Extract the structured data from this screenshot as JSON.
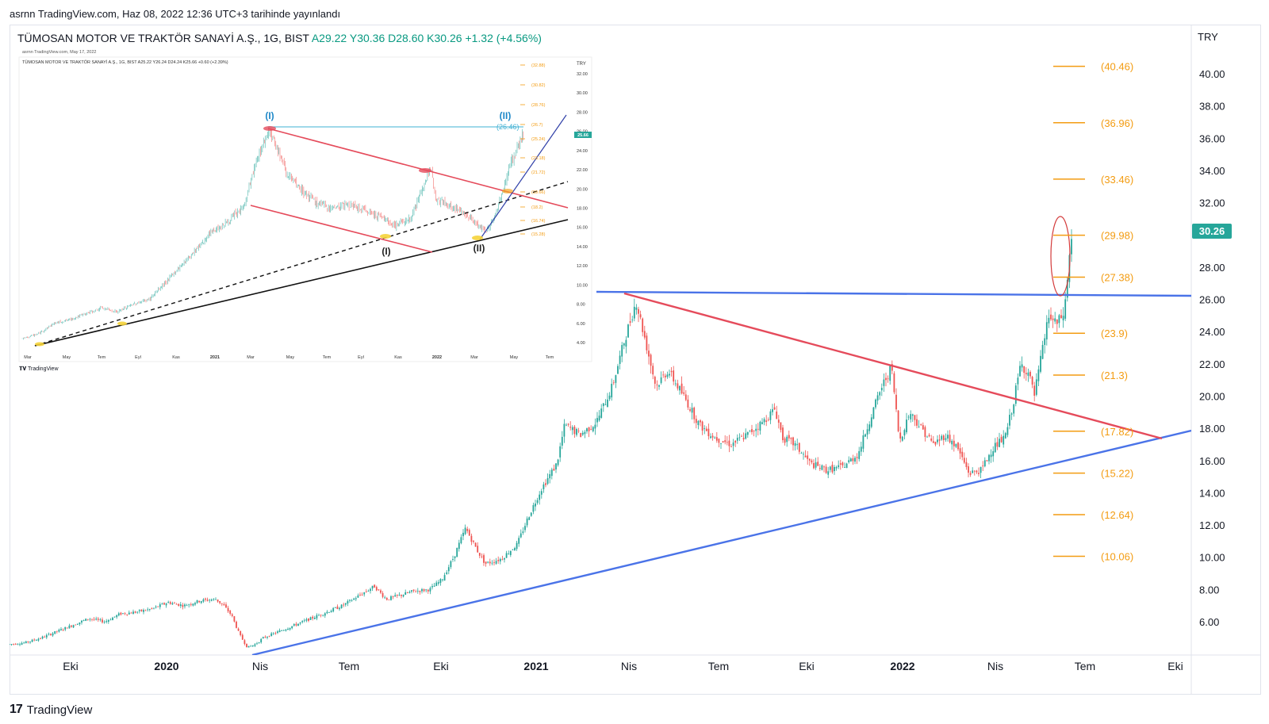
{
  "publish_line": "asrnn TradingView.com, Haz 08, 2022 12:36 UTC+3 tarihinde yayınlandı",
  "symbol": {
    "name": "TÜMOSAN MOTOR VE TRAKTÖR SANAYİ A.Ş., 1G, BIST",
    "open": "A29.22",
    "high": "Y30.36",
    "low": "D28.60",
    "close": "K30.26",
    "change": "+1.32 (+4.56%)"
  },
  "currency": "TRY",
  "footer": "TradingView",
  "colors": {
    "up": "#26a69a",
    "down": "#ef5350",
    "blue_line": "#4a73e8",
    "red_line": "#e54b5b",
    "fib": "#f39c12",
    "price_tag": "#26a69a"
  },
  "chart_data": {
    "type": "candlestick",
    "y_axis": {
      "range": [
        4,
        42
      ],
      "ticks": [
        "40.00",
        "38.00",
        "36.00",
        "34.00",
        "32.00",
        "30.00",
        "28.00",
        "26.00",
        "24.00",
        "22.00",
        "20.00",
        "18.00",
        "16.00",
        "14.00",
        "12.00",
        "10.00",
        "8.00",
        "6.00"
      ]
    },
    "x_axis": {
      "labels": [
        {
          "text": "Eki",
          "bold": false
        },
        {
          "text": "2020",
          "bold": true
        },
        {
          "text": "Nis",
          "bold": false
        },
        {
          "text": "Tem",
          "bold": false
        },
        {
          "text": "Eki",
          "bold": false
        },
        {
          "text": "2021",
          "bold": true
        },
        {
          "text": "Nis",
          "bold": false
        },
        {
          "text": "Tem",
          "bold": false
        },
        {
          "text": "Eki",
          "bold": false
        },
        {
          "text": "2022",
          "bold": true
        },
        {
          "text": "Nis",
          "bold": false
        },
        {
          "text": "Tem",
          "bold": false
        },
        {
          "text": "Eki",
          "bold": false
        }
      ]
    },
    "last_price": "30.26",
    "fib_levels": [
      {
        "label": "(40.46)",
        "value": 40.46
      },
      {
        "label": "(36.96)",
        "value": 36.96
      },
      {
        "label": "(33.46)",
        "value": 33.46
      },
      {
        "label": "(29.98)",
        "value": 29.98
      },
      {
        "label": "(27.38)",
        "value": 27.38
      },
      {
        "label": "(23.9)",
        "value": 23.9
      },
      {
        "label": "(21.3)",
        "value": 21.3
      },
      {
        "label": "(17.82)",
        "value": 17.82
      },
      {
        "label": "(15.22)",
        "value": 15.22
      },
      {
        "label": "(12.64)",
        "value": 12.64
      },
      {
        "label": "(10.06)",
        "value": 10.06
      }
    ],
    "price_path": [
      [
        0,
        4.6
      ],
      [
        20,
        4.7
      ],
      [
        40,
        5.0
      ],
      [
        60,
        5.4
      ],
      [
        80,
        5.8
      ],
      [
        100,
        6.2
      ],
      [
        120,
        6.0
      ],
      [
        140,
        6.5
      ],
      [
        160,
        6.6
      ],
      [
        180,
        6.8
      ],
      [
        200,
        7.2
      ],
      [
        220,
        7.0
      ],
      [
        240,
        7.3
      ],
      [
        260,
        7.4
      ],
      [
        270,
        7.0
      ],
      [
        280,
        6.4
      ],
      [
        290,
        5.2
      ],
      [
        300,
        4.4
      ],
      [
        310,
        4.6
      ],
      [
        320,
        5.0
      ],
      [
        340,
        5.4
      ],
      [
        360,
        5.8
      ],
      [
        380,
        6.2
      ],
      [
        400,
        6.6
      ],
      [
        420,
        7.0
      ],
      [
        440,
        7.6
      ],
      [
        460,
        8.2
      ],
      [
        475,
        7.4
      ],
      [
        490,
        7.6
      ],
      [
        510,
        7.9
      ],
      [
        530,
        8.0
      ],
      [
        545,
        8.6
      ],
      [
        560,
        10.0
      ],
      [
        575,
        11.8
      ],
      [
        590,
        10.4
      ],
      [
        600,
        9.6
      ],
      [
        620,
        9.9
      ],
      [
        640,
        10.8
      ],
      [
        655,
        12.6
      ],
      [
        670,
        14.2
      ],
      [
        690,
        15.8
      ],
      [
        700,
        18.2
      ],
      [
        720,
        17.6
      ],
      [
        740,
        18.4
      ],
      [
        760,
        20.6
      ],
      [
        775,
        23.4
      ],
      [
        790,
        25.9
      ],
      [
        800,
        23.8
      ],
      [
        815,
        20.6
      ],
      [
        830,
        21.6
      ],
      [
        850,
        20.0
      ],
      [
        870,
        18.2
      ],
      [
        890,
        17.4
      ],
      [
        910,
        17.0
      ],
      [
        930,
        17.6
      ],
      [
        950,
        18.4
      ],
      [
        965,
        19.2
      ],
      [
        975,
        17.4
      ],
      [
        990,
        17.0
      ],
      [
        1010,
        15.8
      ],
      [
        1030,
        15.4
      ],
      [
        1050,
        15.6
      ],
      [
        1070,
        16.4
      ],
      [
        1085,
        18.6
      ],
      [
        1100,
        20.6
      ],
      [
        1112,
        21.8
      ],
      [
        1122,
        17.2
      ],
      [
        1135,
        19.0
      ],
      [
        1150,
        18.0
      ],
      [
        1165,
        17.0
      ],
      [
        1180,
        17.6
      ],
      [
        1195,
        16.8
      ],
      [
        1210,
        15.2
      ],
      [
        1225,
        15.4
      ],
      [
        1240,
        16.8
      ],
      [
        1255,
        17.4
      ],
      [
        1265,
        19.4
      ],
      [
        1275,
        22.0
      ],
      [
        1285,
        21.4
      ],
      [
        1292,
        20.0
      ],
      [
        1300,
        22.2
      ],
      [
        1310,
        25.0
      ],
      [
        1320,
        24.4
      ],
      [
        1330,
        25.2
      ],
      [
        1337,
        29.0
      ],
      [
        1340,
        30.26
      ]
    ],
    "inset": {
      "title_line": "asrnn TradingView.com, May 17, 2022",
      "symbol_line": "TÜMOSAN MOTOR VE TRAKTÖR SANAYİ A.Ş., 1G, BIST A25.22 Y26.24 D24.24 K25.66 +0.60 (+2.39%)",
      "currency": "TRY",
      "y_ticks": [
        "32.00",
        "30.00",
        "28.00",
        "26.00",
        "24.00",
        "22.00",
        "20.00",
        "18.00",
        "16.00",
        "14.00",
        "12.00",
        "10.00",
        "8.00",
        "6.00",
        "4.00"
      ],
      "x_labels": [
        "Mar",
        "May",
        "Tem",
        "Eyl",
        "Kas",
        "2021",
        "Mar",
        "May",
        "Tem",
        "Eyl",
        "Kas",
        "2022",
        "Mar",
        "May",
        "Tem"
      ],
      "fib_labels": [
        "(32.88)",
        "(30.82)",
        "(28.76)",
        "(26.7)",
        "(25.24)",
        "(23.18)",
        "(21.72)",
        "(19.66)",
        "(18.2)",
        "(16.74)",
        "(15.28)"
      ],
      "wave_labels": [
        "(I)",
        "(II)",
        "(I)",
        "(II)"
      ],
      "level_label": "(26.46)",
      "last_price": "25.66",
      "footer": "TradingView"
    }
  }
}
